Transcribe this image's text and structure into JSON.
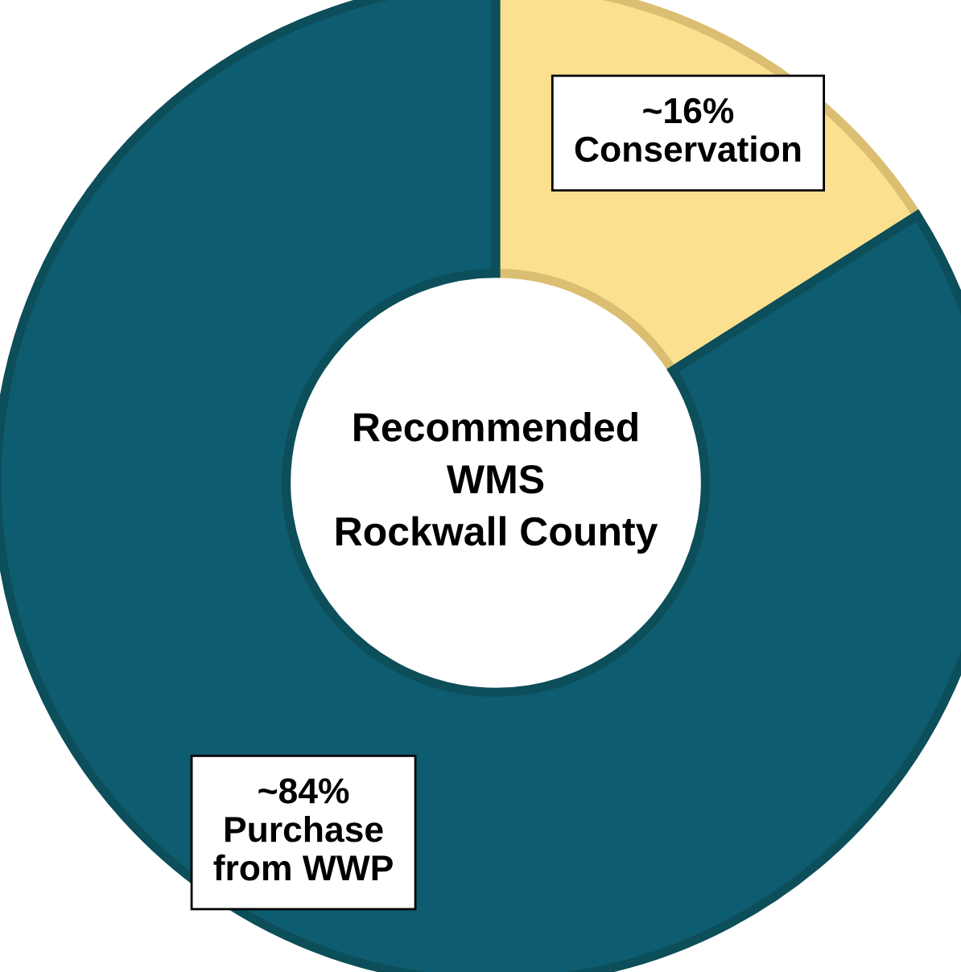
{
  "chart_data": {
    "type": "donut",
    "title": "Recommended\nWMS\nRockwall County",
    "categories": [
      "Conservation",
      "Purchase\nfrom WWP"
    ],
    "values": [
      16,
      84
    ],
    "value_labels": [
      "~16%",
      "~84%"
    ],
    "colors": [
      "#fbe08f",
      "#0e5c70"
    ],
    "legend": false
  }
}
